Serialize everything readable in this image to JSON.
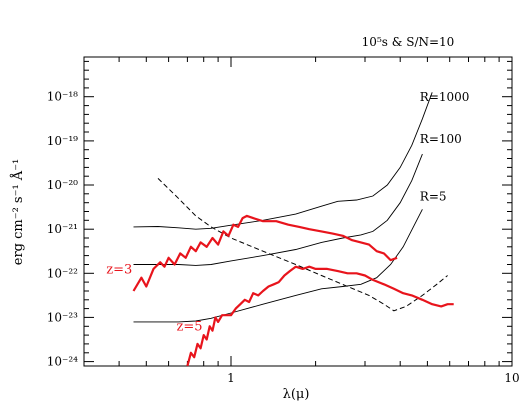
{
  "chart_data": {
    "type": "line",
    "title": "10⁵s & S/N=10",
    "xlabel": "λ(μ)",
    "ylabel": "erg cm⁻² s⁻¹ Å⁻¹",
    "xscale": "log",
    "yscale": "log",
    "xlim": [
      0.3,
      10
    ],
    "ylim": [
      -24.1,
      -17.1
    ],
    "x_ticks": [
      {
        "value": 1,
        "label": "1"
      },
      {
        "value": 10,
        "label": "10"
      }
    ],
    "y_ticks": [
      {
        "value": -24,
        "label": "10⁻²⁴"
      },
      {
        "value": -23,
        "label": "10⁻²³"
      },
      {
        "value": -22,
        "label": "10⁻²²"
      },
      {
        "value": -21,
        "label": "10⁻²¹"
      },
      {
        "value": -20,
        "label": "10⁻²⁰"
      },
      {
        "value": -19,
        "label": "10⁻¹⁹"
      },
      {
        "value": -18,
        "label": "10⁻¹⁸"
      }
    ],
    "grid": false,
    "series": [
      {
        "name": "R=1000",
        "style": "solid",
        "color": "#000000",
        "points": [
          [
            0.45,
            -20.95
          ],
          [
            0.55,
            -20.94
          ],
          [
            0.65,
            -20.97
          ],
          [
            0.75,
            -21.0
          ],
          [
            0.85,
            -20.98
          ],
          [
            1.0,
            -20.91
          ],
          [
            1.3,
            -20.8
          ],
          [
            1.7,
            -20.66
          ],
          [
            2.1,
            -20.48
          ],
          [
            2.4,
            -20.37
          ],
          [
            2.8,
            -20.34
          ],
          [
            3.2,
            -20.25
          ],
          [
            3.6,
            -20.0
          ],
          [
            4.0,
            -19.6
          ],
          [
            4.4,
            -19.1
          ],
          [
            4.8,
            -18.5
          ],
          [
            5.2,
            -17.9
          ]
        ]
      },
      {
        "name": "R=100",
        "style": "solid",
        "color": "#000000",
        "points": [
          [
            0.45,
            -21.8
          ],
          [
            0.55,
            -21.8
          ],
          [
            0.65,
            -21.8
          ],
          [
            0.75,
            -21.82
          ],
          [
            0.85,
            -21.8
          ],
          [
            1.0,
            -21.72
          ],
          [
            1.3,
            -21.6
          ],
          [
            1.7,
            -21.46
          ],
          [
            2.1,
            -21.3
          ],
          [
            2.5,
            -21.2
          ],
          [
            2.9,
            -21.13
          ],
          [
            3.2,
            -21.05
          ],
          [
            3.6,
            -20.8
          ],
          [
            4.0,
            -20.4
          ],
          [
            4.4,
            -19.9
          ],
          [
            4.8,
            -19.3
          ]
        ]
      },
      {
        "name": "R=5",
        "style": "solid",
        "color": "#000000",
        "points": [
          [
            0.45,
            -23.1
          ],
          [
            0.55,
            -23.1
          ],
          [
            0.65,
            -23.1
          ],
          [
            0.75,
            -23.08
          ],
          [
            0.85,
            -23.02
          ],
          [
            1.0,
            -22.9
          ],
          [
            1.3,
            -22.7
          ],
          [
            1.7,
            -22.5
          ],
          [
            2.1,
            -22.35
          ],
          [
            2.5,
            -22.3
          ],
          [
            2.9,
            -22.25
          ],
          [
            3.3,
            -22.1
          ],
          [
            3.7,
            -21.8
          ],
          [
            4.1,
            -21.4
          ],
          [
            4.5,
            -20.9
          ],
          [
            4.8,
            -20.55
          ]
        ]
      },
      {
        "name": "",
        "style": "dashed",
        "color": "#000000",
        "points": [
          [
            0.55,
            -19.85
          ],
          [
            0.65,
            -20.3
          ],
          [
            0.75,
            -20.7
          ],
          [
            0.85,
            -20.95
          ],
          [
            1.0,
            -21.2
          ],
          [
            1.3,
            -21.5
          ],
          [
            1.7,
            -21.8
          ],
          [
            2.1,
            -22.05
          ],
          [
            2.6,
            -22.3
          ],
          [
            3.1,
            -22.5
          ],
          [
            3.5,
            -22.7
          ],
          [
            3.8,
            -22.85
          ],
          [
            4.2,
            -22.75
          ],
          [
            4.8,
            -22.5
          ],
          [
            5.4,
            -22.25
          ],
          [
            5.9,
            -22.05
          ]
        ]
      },
      {
        "name": "z=3",
        "style": "solid",
        "color": "#e8141c",
        "points": [
          [
            0.45,
            -22.4
          ],
          [
            0.48,
            -22.1
          ],
          [
            0.5,
            -22.3
          ],
          [
            0.53,
            -21.9
          ],
          [
            0.56,
            -21.75
          ],
          [
            0.58,
            -21.85
          ],
          [
            0.6,
            -21.65
          ],
          [
            0.63,
            -21.8
          ],
          [
            0.66,
            -21.55
          ],
          [
            0.69,
            -21.65
          ],
          [
            0.72,
            -21.4
          ],
          [
            0.75,
            -21.5
          ],
          [
            0.78,
            -21.3
          ],
          [
            0.82,
            -21.4
          ],
          [
            0.86,
            -21.2
          ],
          [
            0.9,
            -21.35
          ],
          [
            0.94,
            -21.05
          ],
          [
            0.98,
            -21.15
          ],
          [
            1.02,
            -20.9
          ],
          [
            1.06,
            -20.95
          ],
          [
            1.1,
            -20.75
          ],
          [
            1.14,
            -20.7
          ],
          [
            1.2,
            -20.75
          ],
          [
            1.3,
            -20.82
          ],
          [
            1.45,
            -20.82
          ],
          [
            1.6,
            -20.9
          ],
          [
            1.75,
            -20.95
          ],
          [
            1.9,
            -21.0
          ],
          [
            2.1,
            -21.05
          ],
          [
            2.3,
            -21.1
          ],
          [
            2.5,
            -21.15
          ],
          [
            2.7,
            -21.25
          ],
          [
            2.9,
            -21.3
          ],
          [
            3.1,
            -21.35
          ],
          [
            3.3,
            -21.5
          ],
          [
            3.5,
            -21.55
          ],
          [
            3.7,
            -21.7
          ],
          [
            3.9,
            -21.65
          ]
        ]
      },
      {
        "name": "z=5",
        "style": "solid",
        "color": "#e8141c",
        "points": [
          [
            0.7,
            -24.1
          ],
          [
            0.72,
            -23.8
          ],
          [
            0.74,
            -23.9
          ],
          [
            0.76,
            -23.6
          ],
          [
            0.78,
            -23.7
          ],
          [
            0.8,
            -23.4
          ],
          [
            0.82,
            -23.5
          ],
          [
            0.84,
            -23.2
          ],
          [
            0.86,
            -23.3
          ],
          [
            0.88,
            -23.0
          ],
          [
            0.9,
            -23.1
          ],
          [
            0.93,
            -22.95
          ],
          [
            0.96,
            -22.95
          ],
          [
            1.0,
            -22.95
          ],
          [
            1.04,
            -22.8
          ],
          [
            1.08,
            -22.7
          ],
          [
            1.12,
            -22.6
          ],
          [
            1.16,
            -22.65
          ],
          [
            1.2,
            -22.45
          ],
          [
            1.25,
            -22.5
          ],
          [
            1.3,
            -22.4
          ],
          [
            1.36,
            -22.3
          ],
          [
            1.42,
            -22.25
          ],
          [
            1.48,
            -22.2
          ],
          [
            1.55,
            -22.05
          ],
          [
            1.62,
            -21.95
          ],
          [
            1.7,
            -21.85
          ],
          [
            1.8,
            -21.9
          ],
          [
            1.9,
            -21.85
          ],
          [
            2.0,
            -21.9
          ],
          [
            2.2,
            -21.9
          ],
          [
            2.4,
            -21.95
          ],
          [
            2.6,
            -22.0
          ],
          [
            2.8,
            -22.0
          ],
          [
            3.0,
            -22.05
          ],
          [
            3.2,
            -22.15
          ],
          [
            3.5,
            -22.25
          ],
          [
            3.8,
            -22.35
          ],
          [
            4.1,
            -22.45
          ],
          [
            4.4,
            -22.5
          ],
          [
            4.8,
            -22.6
          ],
          [
            5.2,
            -22.7
          ],
          [
            5.6,
            -22.75
          ],
          [
            5.9,
            -22.7
          ],
          [
            6.2,
            -22.7
          ]
        ]
      }
    ],
    "annotations": [
      {
        "text": "R=1000",
        "x": 4.7,
        "y": -18.1
      },
      {
        "text": "R=100",
        "x": 4.7,
        "y": -19.05
      },
      {
        "text": "R=5",
        "x": 4.7,
        "y": -20.35
      },
      {
        "text": "z=3",
        "x": 0.36,
        "y": -22.0,
        "color": "#e8141c"
      },
      {
        "text": "z=5",
        "x": 0.64,
        "y": -23.3,
        "color": "#e8141c"
      }
    ]
  }
}
